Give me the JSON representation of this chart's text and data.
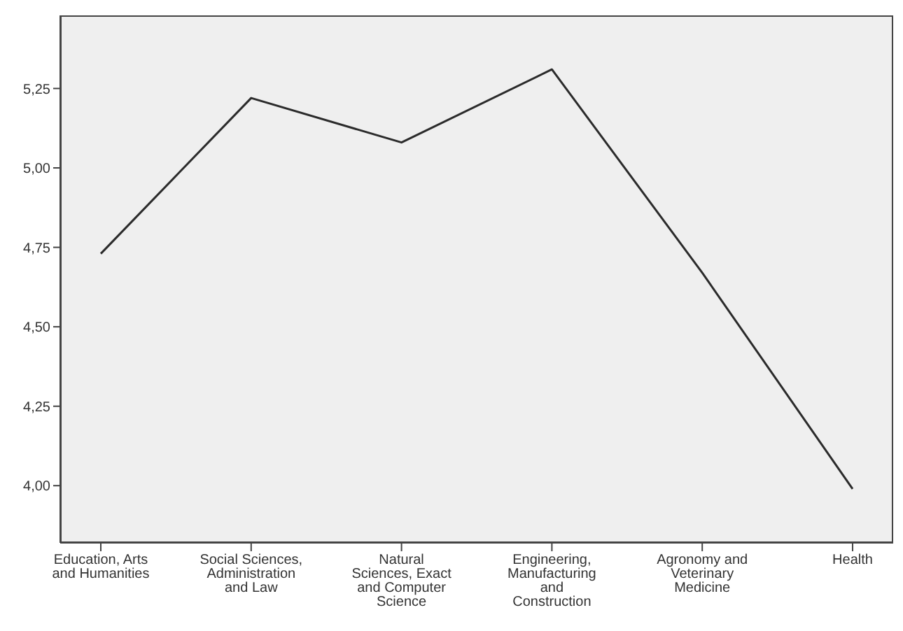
{
  "chart_data": {
    "type": "line",
    "categories": [
      "Education, Arts and Humanities",
      "Social Sciences, Administration and Law",
      "Natural Sciences, Exact and Computer Science",
      "Engineering, Manufacturing and Construction",
      "Agronomy and Veterinary Medicine",
      "Health"
    ],
    "values": [
      4.73,
      5.22,
      5.08,
      5.31,
      4.67,
      3.99
    ],
    "color": "#2b2b2b",
    "ylim": [
      3.82,
      5.48
    ],
    "yticks": [
      {
        "value": 4,
        "label": "4,00"
      },
      {
        "value": 4.25,
        "label": "4,25"
      },
      {
        "value": 4.5,
        "label": "4,50"
      },
      {
        "value": 4.75,
        "label": "4,75"
      },
      {
        "value": 5,
        "label": "5,00"
      },
      {
        "value": 5.25,
        "label": "5,25"
      }
    ],
    "grid": false,
    "legend": false
  }
}
